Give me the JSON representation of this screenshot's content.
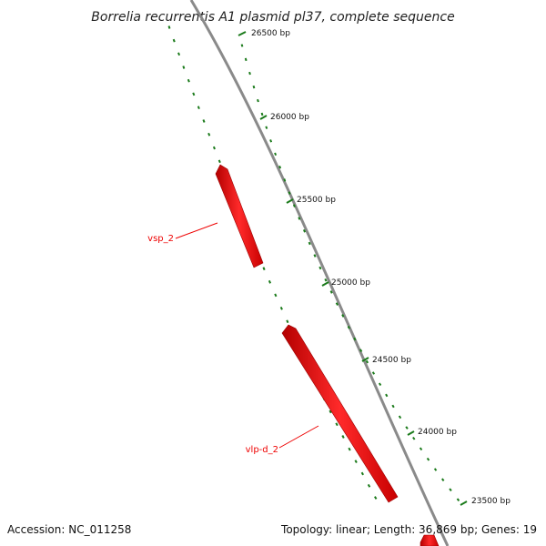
{
  "title": "Borrelia recurrentis A1 plasmid pl37, complete sequence",
  "footer": {
    "accession": "Accession: NC_011258",
    "summary": "Topology: linear; Length: 36,869 bp; Genes: 19"
  },
  "colors": {
    "backbone": "#8a8a8a",
    "gene": "#ee0000",
    "tick": "#1a7a1a",
    "label_line": "#ee0000"
  },
  "scale_ticks": [
    "26500 bp",
    "26000 bp",
    "25500 bp",
    "25000 bp",
    "24500 bp",
    "24000 bp",
    "23500 bp"
  ],
  "genes": [
    {
      "name": "vsp_2"
    },
    {
      "name": "vlp-d_2"
    },
    {
      "name": ""
    }
  ]
}
